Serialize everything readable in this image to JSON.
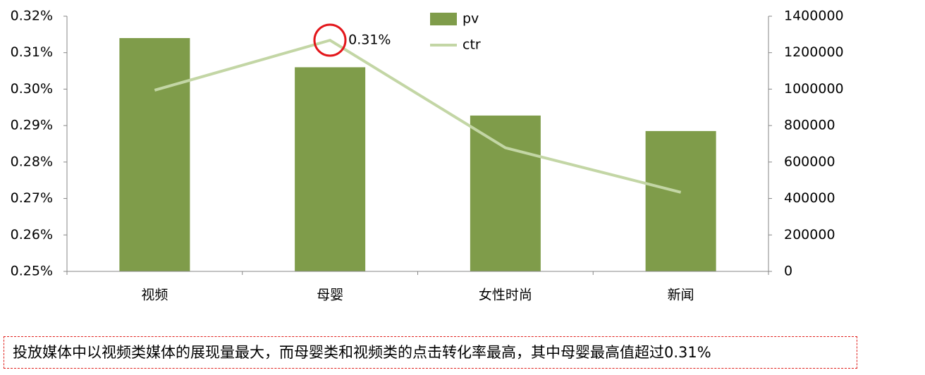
{
  "chart_data": {
    "type": "bar",
    "categories": [
      "视频",
      "母婴",
      "女性时尚",
      "新闻"
    ],
    "series": [
      {
        "name": "pv",
        "type": "bar",
        "color": "#7f9c4a",
        "axis": "y2",
        "values": [
          1280000,
          1120000,
          855000,
          770000
        ]
      },
      {
        "name": "ctr",
        "type": "line",
        "color": "#c3d6a5",
        "values": [
          0.2997,
          0.3134,
          0.2839,
          0.2717
        ],
        "value_labels": [
          null,
          "0.31%",
          null,
          null
        ]
      }
    ],
    "ylim": [
      0.25,
      0.32
    ],
    "yticks": [
      {
        "value": 0.25,
        "label": "0.25%"
      },
      {
        "value": 0.26,
        "label": "0.26%"
      },
      {
        "value": 0.27,
        "label": "0.27%"
      },
      {
        "value": 0.28,
        "label": "0.28%"
      },
      {
        "value": 0.29,
        "label": "0.29%"
      },
      {
        "value": 0.3,
        "label": "0.30%"
      },
      {
        "value": 0.31,
        "label": "0.31%"
      },
      {
        "value": 0.32,
        "label": "0.32%"
      }
    ],
    "y2lim": [
      0,
      1400000
    ],
    "y2ticks": [
      0,
      200000,
      400000,
      600000,
      800000,
      1000000,
      1200000,
      1400000
    ],
    "legend": "top"
  },
  "caption": "投放媒体中以视频类媒体的展现量最大，而母婴类和视频类的点击转化率最高，其中母婴最高值超过0.31%"
}
